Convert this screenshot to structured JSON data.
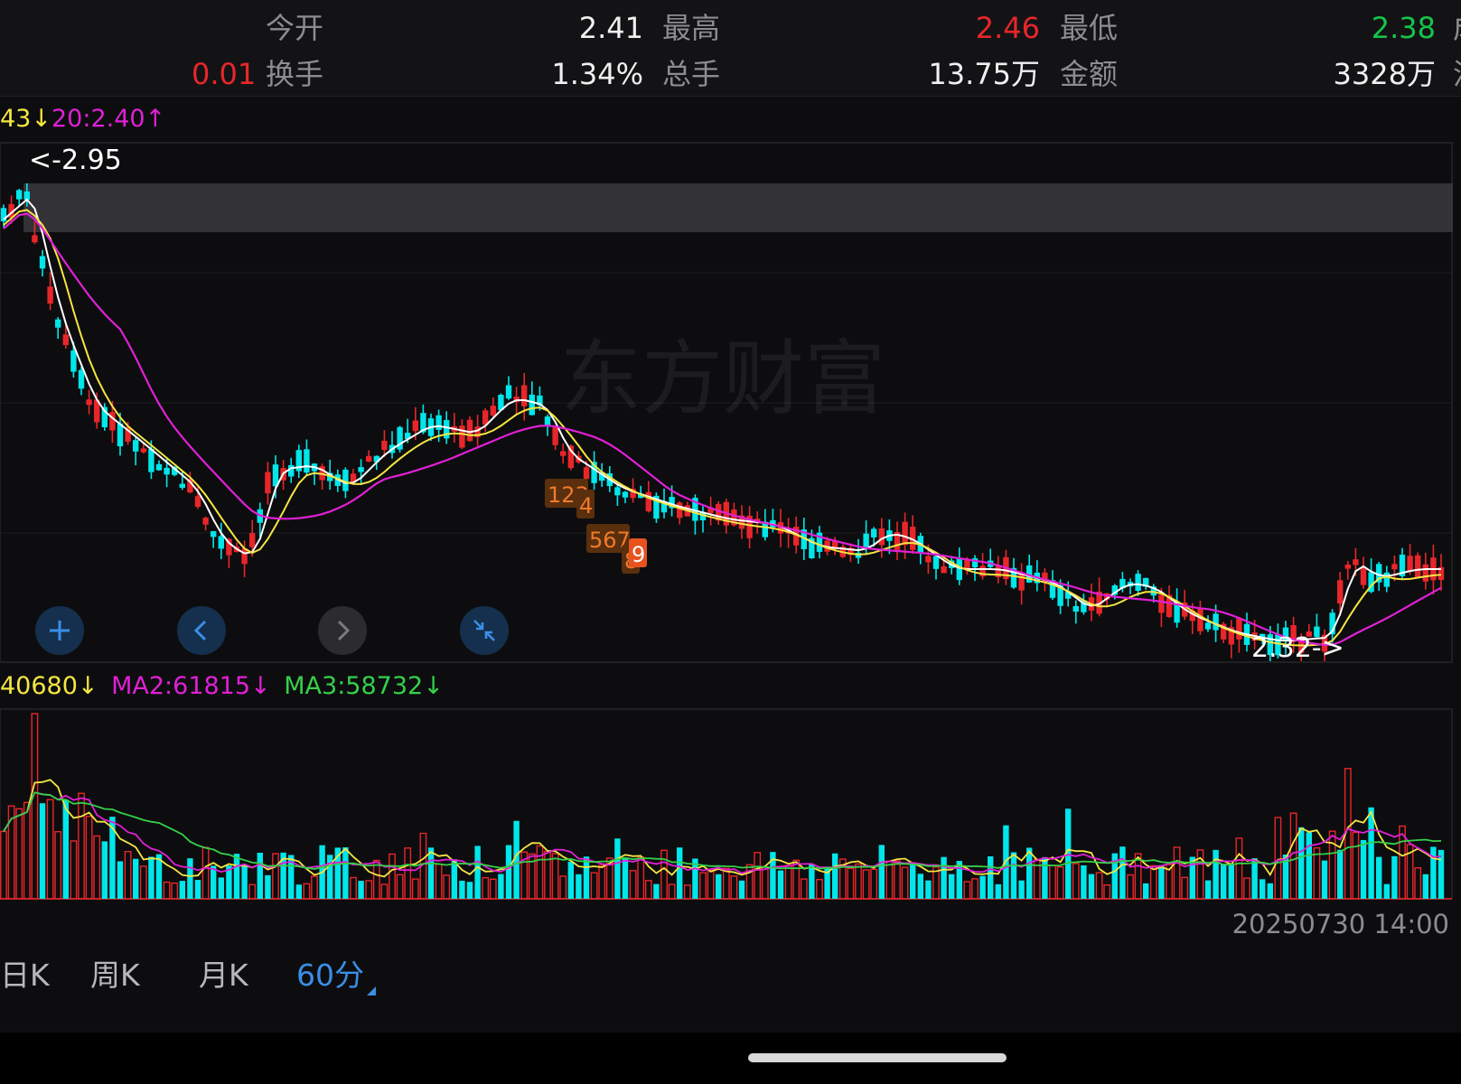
{
  "quote": {
    "row1": [
      {
        "label": "今开",
        "value": "2.41",
        "value_color": "white"
      },
      {
        "label": "最高",
        "value": "2.46",
        "value_color": "red"
      },
      {
        "label": "最低",
        "value": "2.38",
        "value_color": "green"
      }
    ],
    "row2_lead": {
      "value": "0.01",
      "value_color": "red"
    },
    "row2": [
      {
        "label": "换手",
        "value": "1.34%",
        "value_color": "white"
      },
      {
        "label": "总手",
        "value": "13.75万",
        "value_color": "white"
      },
      {
        "label": "金额",
        "value": "3328万",
        "value_color": "white"
      }
    ],
    "cut_right_1": "成",
    "cut_right_2": "流"
  },
  "price_ma": {
    "ma1": "43↓",
    "ma2": "20:2.40↑"
  },
  "vol_ma": {
    "ma1": "40680↓",
    "ma2": "MA2:61815↓",
    "ma3": "MA3:58732↓"
  },
  "annotations": {
    "high_label": "<-2.95",
    "low_label": "2.32->",
    "seq_numbers": [
      "123",
      "4",
      "567",
      "8",
      "9"
    ]
  },
  "watermark": "东方财富",
  "nav_buttons": [
    {
      "icon": "plus-icon"
    },
    {
      "icon": "chevron-left-icon"
    },
    {
      "icon": "chevron-right-icon"
    },
    {
      "icon": "collapse-icon"
    }
  ],
  "timestamp": "20250730 14:00",
  "period_tabs": [
    {
      "label": "日K",
      "active": false
    },
    {
      "label": "周K",
      "active": false
    },
    {
      "label": "月K",
      "active": false
    },
    {
      "label": "60分",
      "active": true
    }
  ],
  "colors": {
    "up": "#e8262a",
    "down": "#00e6ea",
    "ma_white": "#ffffff",
    "ma_yellow": "#f5e642",
    "ma_magenta": "#e020d6",
    "ma_green": "#35d04a",
    "accent": "#3a8ee6"
  },
  "chart_data": {
    "type": "candlestick",
    "price_range": [
      2.32,
      2.95
    ],
    "high": 2.95,
    "low": 2.32
  }
}
